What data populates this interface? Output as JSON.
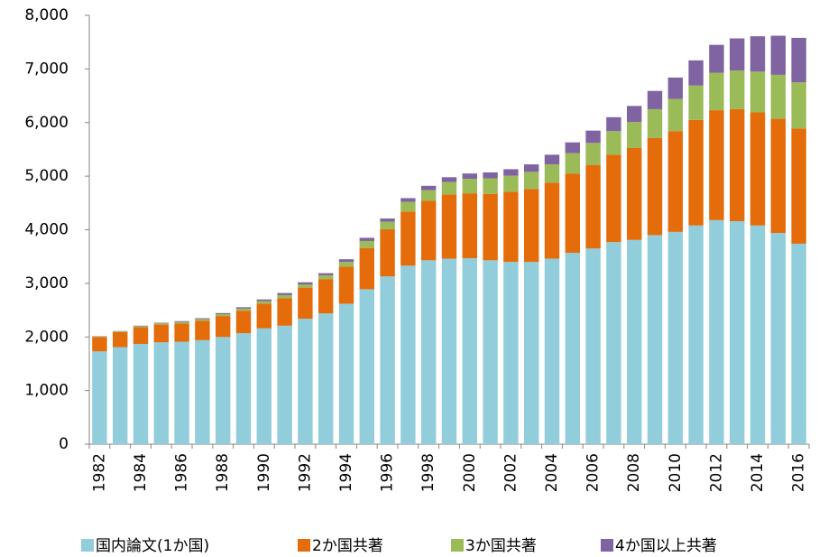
{
  "chart_data": {
    "type": "stacked_bar",
    "categories": [
      "1982",
      null,
      "1984",
      null,
      "1986",
      null,
      "1988",
      null,
      "1990",
      null,
      "1992",
      null,
      "1994",
      null,
      "1996",
      null,
      "1998",
      null,
      "2000",
      null,
      "2002",
      null,
      "2004",
      null,
      "2006",
      null,
      "2008",
      null,
      "2010",
      null,
      "2012",
      null,
      "2014",
      null,
      "2016"
    ],
    "series": [
      {
        "name": "国内論文(1か国)",
        "color": "#92cddc",
        "values": [
          1730,
          1810,
          1870,
          1900,
          1910,
          1940,
          2000,
          2070,
          2160,
          2210,
          2340,
          2440,
          2620,
          2890,
          3130,
          3330,
          3430,
          3460,
          3470,
          3430,
          3400,
          3400,
          3460,
          3570,
          3650,
          3770,
          3810,
          3900,
          3960,
          4080,
          4180,
          4160,
          4080,
          3940,
          3740
        ]
      },
      {
        "name": "2か国共著",
        "color": "#e46c0a",
        "values": [
          270,
          280,
          310,
          330,
          340,
          360,
          390,
          420,
          460,
          510,
          580,
          640,
          690,
          770,
          880,
          1010,
          1110,
          1200,
          1210,
          1240,
          1310,
          1360,
          1420,
          1480,
          1560,
          1630,
          1720,
          1810,
          1880,
          1970,
          2050,
          2090,
          2110,
          2130,
          2150
        ]
      },
      {
        "name": "3か国共著",
        "color": "#9bbb59",
        "values": [
          10,
          15,
          20,
          25,
          30,
          35,
          35,
          40,
          50,
          60,
          60,
          70,
          90,
          130,
          140,
          180,
          200,
          230,
          270,
          290,
          300,
          320,
          340,
          380,
          410,
          440,
          480,
          540,
          600,
          640,
          700,
          720,
          760,
          820,
          860
        ]
      },
      {
        "name": "4か国以上共著",
        "color": "#8064a2",
        "values": [
          5,
          5,
          10,
          10,
          15,
          15,
          20,
          25,
          30,
          40,
          40,
          40,
          50,
          60,
          60,
          70,
          80,
          90,
          100,
          110,
          120,
          140,
          180,
          200,
          230,
          260,
          300,
          340,
          400,
          470,
          520,
          600,
          660,
          730,
          830
        ]
      }
    ],
    "ylim": [
      0,
      8000
    ],
    "yticks": [
      0,
      {
        "value": 1000,
        "label": "1,000"
      },
      {
        "value": 2000,
        "label": "2,000"
      },
      {
        "value": 3000,
        "label": "3,000"
      },
      {
        "value": 4000,
        "label": "4,000"
      },
      {
        "value": 5000,
        "label": "5,000"
      },
      {
        "value": 6000,
        "label": "6,000"
      },
      {
        "value": 7000,
        "label": "7,000"
      },
      {
        "value": 8000,
        "label": "8,000"
      }
    ],
    "grid": false,
    "legend": "bottom"
  }
}
